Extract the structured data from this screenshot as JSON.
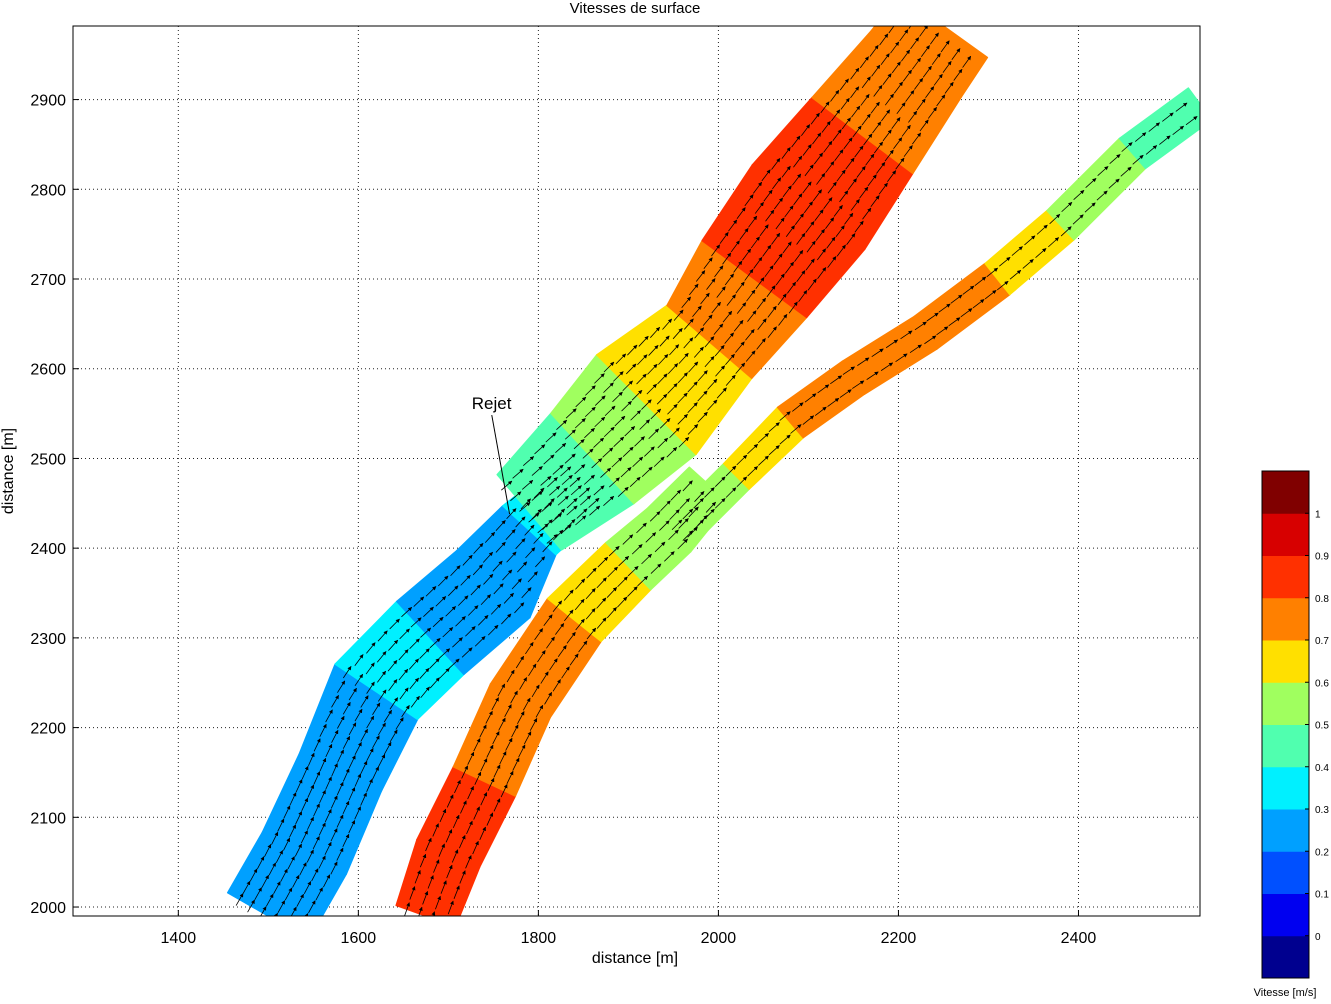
{
  "chart_data": {
    "type": "contour-quiver",
    "title": "Vitesses de surface",
    "xlabel": "distance [m]",
    "ylabel": "distance [m]",
    "xlim": [
      1283,
      2535
    ],
    "ylim": [
      1990,
      2982
    ],
    "x_ticks": [
      1400,
      1600,
      1800,
      2000,
      2200,
      2400
    ],
    "y_ticks": [
      2000,
      2100,
      2200,
      2300,
      2400,
      2500,
      2600,
      2700,
      2800,
      2900
    ],
    "grid": true,
    "annotation": {
      "text": "Rejet",
      "target": [
        1768,
        2438
      ],
      "text_at": [
        1726,
        2555
      ]
    },
    "colorbar": {
      "label": "Vitesse [m/s]",
      "range": [
        -0.1,
        1.1
      ],
      "tick_values": [
        0,
        0.1,
        0.2,
        0.3,
        0.4,
        0.5,
        0.6,
        0.7,
        0.8,
        0.9,
        1
      ],
      "tick_labels": [
        "0",
        "0.1",
        "0.2",
        "0.3",
        "0.4",
        "0.5",
        "0.6",
        "0.7",
        "0.8",
        "0.9",
        "1"
      ],
      "colors": [
        "#00008f",
        "#0000f0",
        "#0050ff",
        "#00a0ff",
        "#00f0ff",
        "#50ffaf",
        "#a0ff5f",
        "#ffe000",
        "#ff8000",
        "#ff3000",
        "#d70000",
        "#800000"
      ]
    },
    "branches": [
      {
        "name": "west-channel",
        "centerline": [
          [
            1500,
            1990
          ],
          [
            1540,
            2060
          ],
          [
            1580,
            2150
          ],
          [
            1620,
            2240
          ],
          [
            1680,
            2300
          ],
          [
            1750,
            2360
          ],
          [
            1790,
            2420
          ],
          [
            1860,
            2480
          ]
        ],
        "half_width": [
          52,
          52,
          50,
          55,
          55,
          55,
          40,
          36
        ],
        "velocity": [
          0.2,
          0.2,
          0.25,
          0.3,
          0.3,
          0.28,
          0.3,
          0.3
        ]
      },
      {
        "name": "east-channel",
        "centerline": [
          [
            1675,
            1990
          ],
          [
            1700,
            2060
          ],
          [
            1740,
            2140
          ],
          [
            1780,
            2230
          ],
          [
            1840,
            2320
          ],
          [
            1900,
            2380
          ],
          [
            1945,
            2420
          ],
          [
            1990,
            2470
          ]
        ],
        "half_width": [
          35,
          38,
          38,
          38,
          38,
          36,
          34,
          30
        ],
        "velocity": [
          0.95,
          0.85,
          0.8,
          0.8,
          0.72,
          0.62,
          0.55,
          0.5
        ]
      },
      {
        "name": "main-river",
        "centerline": [
          [
            1790,
            2440
          ],
          [
            1860,
            2500
          ],
          [
            1920,
            2560
          ],
          [
            1990,
            2630
          ],
          [
            2040,
            2700
          ],
          [
            2100,
            2780
          ],
          [
            2160,
            2860
          ],
          [
            2220,
            2940
          ],
          [
            2250,
            2982
          ]
        ],
        "half_width": [
          55,
          68,
          78,
          62,
          72,
          78,
          70,
          62,
          60
        ],
        "velocity": [
          0.45,
          0.55,
          0.65,
          0.75,
          0.8,
          0.82,
          0.8,
          0.8,
          0.8
        ]
      },
      {
        "name": "north-east-branch",
        "centerline": [
          [
            1960,
            2420
          ],
          [
            2020,
            2480
          ],
          [
            2080,
            2540
          ],
          [
            2150,
            2590
          ],
          [
            2230,
            2640
          ],
          [
            2310,
            2700
          ],
          [
            2380,
            2760
          ],
          [
            2460,
            2840
          ],
          [
            2535,
            2895
          ]
        ],
        "half_width": [
          20,
          20,
          22,
          22,
          22,
          22,
          22,
          22,
          22
        ],
        "velocity": [
          0.5,
          0.6,
          0.72,
          0.78,
          0.78,
          0.72,
          0.58,
          0.52,
          0.45
        ]
      }
    ]
  }
}
